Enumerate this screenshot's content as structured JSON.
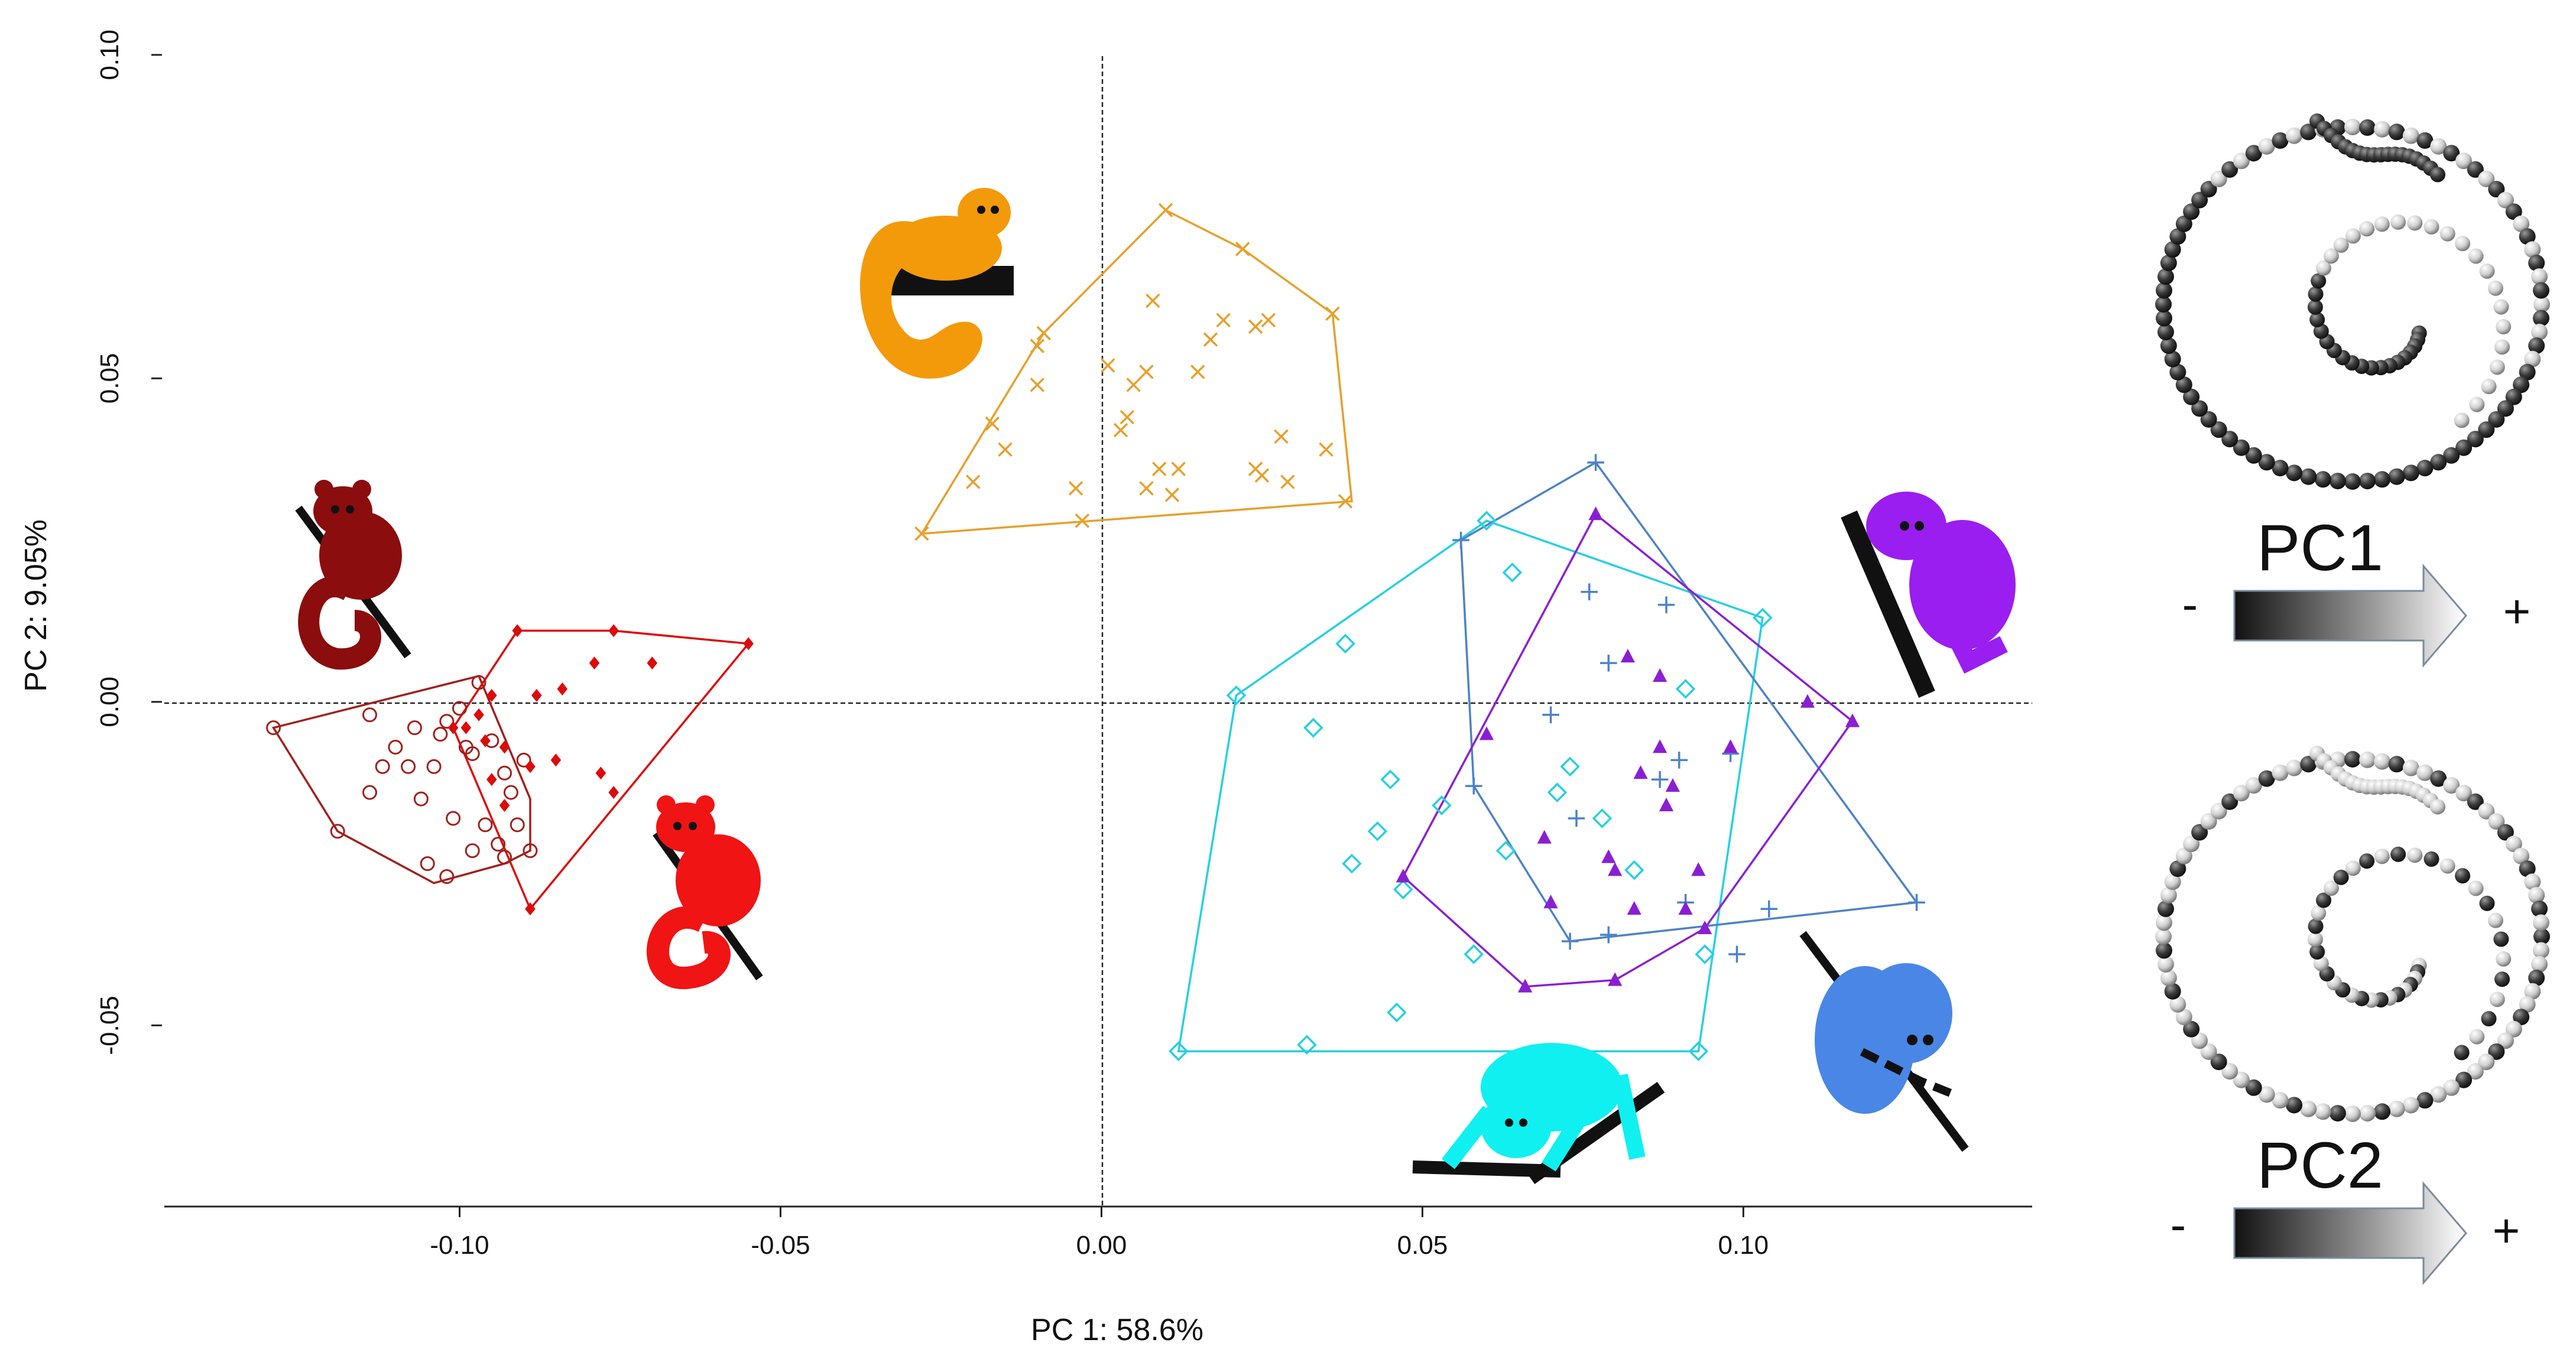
{
  "chart_data": {
    "type": "scatter",
    "xlabel": "PC 1: 58.6%",
    "ylabel": "PC 2: 9.05%",
    "xlim": [
      -0.146,
      0.145
    ],
    "ylim": [
      -0.078,
      0.103
    ],
    "xticks": [
      -0.1,
      -0.05,
      0.0,
      0.05,
      0.1
    ],
    "xtick_labels": [
      "-0.10",
      "-0.05",
      "0.00",
      "0.05",
      "0.10"
    ],
    "yticks": [
      -0.05,
      0.0,
      0.05,
      0.1
    ],
    "ytick_labels": [
      "-0.05",
      "0.00",
      "0.05",
      "0.10"
    ],
    "zero_lines": true,
    "series": [
      {
        "name": "dark-red-open-circles",
        "color": "#a0201c",
        "marker": "circle-open",
        "points": [
          [
            -0.129,
            -0.004
          ],
          [
            -0.114,
            -0.002
          ],
          [
            -0.107,
            -0.004
          ],
          [
            -0.102,
            -0.003
          ],
          [
            -0.097,
            0.003
          ],
          [
            -0.1,
            -0.001
          ],
          [
            -0.11,
            -0.007
          ],
          [
            -0.103,
            -0.005
          ],
          [
            -0.099,
            -0.007
          ],
          [
            -0.095,
            -0.006
          ],
          [
            -0.112,
            -0.01
          ],
          [
            -0.108,
            -0.01
          ],
          [
            -0.104,
            -0.01
          ],
          [
            -0.098,
            -0.008
          ],
          [
            -0.093,
            -0.011
          ],
          [
            -0.09,
            -0.009
          ],
          [
            -0.114,
            -0.014
          ],
          [
            -0.106,
            -0.015
          ],
          [
            -0.101,
            -0.018
          ],
          [
            -0.096,
            -0.019
          ],
          [
            -0.092,
            -0.014
          ],
          [
            -0.091,
            -0.019
          ],
          [
            -0.094,
            -0.022
          ],
          [
            -0.105,
            -0.025
          ],
          [
            -0.098,
            -0.023
          ],
          [
            -0.119,
            -0.02
          ],
          [
            -0.093,
            -0.024
          ],
          [
            -0.102,
            -0.027
          ],
          [
            -0.089,
            -0.023
          ]
        ],
        "hull": [
          [
            -0.129,
            -0.004
          ],
          [
            -0.097,
            0.004
          ],
          [
            -0.089,
            -0.015
          ],
          [
            -0.089,
            -0.023
          ],
          [
            -0.093,
            -0.025
          ],
          [
            -0.104,
            -0.028
          ],
          [
            -0.119,
            -0.02
          ]
        ]
      },
      {
        "name": "red-diamonds",
        "color": "#dd0a0a",
        "marker": "diamond-filled",
        "points": [
          [
            -0.091,
            0.011
          ],
          [
            -0.076,
            0.011
          ],
          [
            -0.055,
            0.009
          ],
          [
            -0.07,
            0.006
          ],
          [
            -0.079,
            0.006
          ],
          [
            -0.084,
            0.002
          ],
          [
            -0.088,
            0.001
          ],
          [
            -0.095,
            0.001
          ],
          [
            -0.097,
            -0.002
          ],
          [
            -0.099,
            -0.004
          ],
          [
            -0.101,
            -0.004
          ],
          [
            -0.096,
            -0.006
          ],
          [
            -0.093,
            -0.007
          ],
          [
            -0.085,
            -0.009
          ],
          [
            -0.089,
            -0.01
          ],
          [
            -0.078,
            -0.011
          ],
          [
            -0.095,
            -0.012
          ],
          [
            -0.093,
            -0.016
          ],
          [
            -0.076,
            -0.014
          ],
          [
            -0.089,
            -0.032
          ]
        ],
        "hull": [
          [
            -0.101,
            -0.004
          ],
          [
            -0.091,
            0.011
          ],
          [
            -0.076,
            0.011
          ],
          [
            -0.055,
            0.009
          ],
          [
            -0.089,
            -0.032
          ]
        ]
      },
      {
        "name": "orange-crosses",
        "color": "#e6a02a",
        "marker": "x",
        "points": [
          [
            0.01,
            0.076
          ],
          [
            0.022,
            0.07
          ],
          [
            0.008,
            0.062
          ],
          [
            -0.009,
            0.057
          ],
          [
            0.019,
            0.059
          ],
          [
            0.024,
            0.058
          ],
          [
            0.026,
            0.059
          ],
          [
            0.036,
            0.06
          ],
          [
            -0.01,
            0.055
          ],
          [
            0.017,
            0.056
          ],
          [
            0.001,
            0.052
          ],
          [
            0.007,
            0.051
          ],
          [
            0.005,
            0.049
          ],
          [
            -0.01,
            0.049
          ],
          [
            0.015,
            0.051
          ],
          [
            0.004,
            0.044
          ],
          [
            0.003,
            0.042
          ],
          [
            -0.017,
            0.043
          ],
          [
            0.028,
            0.041
          ],
          [
            0.035,
            0.039
          ],
          [
            -0.015,
            0.039
          ],
          [
            0.009,
            0.036
          ],
          [
            0.012,
            0.036
          ],
          [
            0.024,
            0.036
          ],
          [
            0.025,
            0.035
          ],
          [
            0.029,
            0.034
          ],
          [
            -0.02,
            0.034
          ],
          [
            -0.004,
            0.033
          ],
          [
            0.007,
            0.033
          ],
          [
            0.011,
            0.032
          ],
          [
            0.038,
            0.031
          ],
          [
            -0.003,
            0.028
          ],
          [
            -0.028,
            0.026
          ]
        ],
        "hull": [
          [
            -0.028,
            0.026
          ],
          [
            -0.009,
            0.057
          ],
          [
            0.01,
            0.076
          ],
          [
            0.022,
            0.07
          ],
          [
            0.036,
            0.06
          ],
          [
            0.039,
            0.031
          ]
        ]
      },
      {
        "name": "cyan-diamonds",
        "color": "#27cfe0",
        "marker": "diamond-open",
        "points": [
          [
            0.06,
            0.028
          ],
          [
            0.064,
            0.02
          ],
          [
            0.103,
            0.013
          ],
          [
            0.038,
            0.009
          ],
          [
            0.091,
            0.002
          ],
          [
            0.021,
            0.001
          ],
          [
            0.033,
            -0.004
          ],
          [
            0.045,
            -0.012
          ],
          [
            0.053,
            -0.016
          ],
          [
            0.073,
            -0.01
          ],
          [
            0.071,
            -0.014
          ],
          [
            0.043,
            -0.02
          ],
          [
            0.078,
            -0.018
          ],
          [
            0.039,
            -0.025
          ],
          [
            0.063,
            -0.023
          ],
          [
            0.083,
            -0.026
          ],
          [
            0.047,
            -0.029
          ],
          [
            0.058,
            -0.039
          ],
          [
            0.094,
            -0.039
          ],
          [
            0.046,
            -0.048
          ],
          [
            0.032,
            -0.053
          ],
          [
            0.093,
            -0.054
          ],
          [
            0.012,
            -0.054
          ]
        ],
        "hull": [
          [
            0.012,
            -0.054
          ],
          [
            0.021,
            0.001
          ],
          [
            0.06,
            0.028
          ],
          [
            0.103,
            0.013
          ],
          [
            0.093,
            -0.054
          ]
        ]
      },
      {
        "name": "blue-plus",
        "color": "#4d82c6",
        "marker": "plus",
        "points": [
          [
            0.077,
            0.037
          ],
          [
            0.056,
            0.025
          ],
          [
            0.076,
            0.017
          ],
          [
            0.088,
            0.015
          ],
          [
            0.079,
            0.006
          ],
          [
            0.07,
            -0.002
          ],
          [
            0.09,
            -0.009
          ],
          [
            0.087,
            -0.012
          ],
          [
            0.098,
            -0.008
          ],
          [
            0.058,
            -0.013
          ],
          [
            0.074,
            -0.018
          ],
          [
            0.091,
            -0.031
          ],
          [
            0.104,
            -0.032
          ],
          [
            0.079,
            -0.036
          ],
          [
            0.073,
            -0.037
          ],
          [
            0.099,
            -0.039
          ],
          [
            0.127,
            -0.031
          ]
        ],
        "hull": [
          [
            0.056,
            0.025
          ],
          [
            0.077,
            0.037
          ],
          [
            0.127,
            -0.031
          ],
          [
            0.073,
            -0.037
          ],
          [
            0.058,
            -0.013
          ]
        ]
      },
      {
        "name": "purple-triangles",
        "color": "#8a1fd2",
        "marker": "triangle-filled",
        "points": [
          [
            0.077,
            0.029
          ],
          [
            0.082,
            0.007
          ],
          [
            0.087,
            0.004
          ],
          [
            0.11,
            0.0
          ],
          [
            0.117,
            -0.003
          ],
          [
            0.06,
            -0.005
          ],
          [
            0.087,
            -0.007
          ],
          [
            0.098,
            -0.007
          ],
          [
            0.084,
            -0.011
          ],
          [
            0.089,
            -0.013
          ],
          [
            0.088,
            -0.016
          ],
          [
            0.069,
            -0.021
          ],
          [
            0.079,
            -0.024
          ],
          [
            0.08,
            -0.026
          ],
          [
            0.047,
            -0.027
          ],
          [
            0.093,
            -0.026
          ],
          [
            0.07,
            -0.031
          ],
          [
            0.083,
            -0.032
          ],
          [
            0.091,
            -0.032
          ],
          [
            0.094,
            -0.035
          ],
          [
            0.066,
            -0.044
          ],
          [
            0.08,
            -0.043
          ]
        ],
        "hull": [
          [
            0.047,
            -0.027
          ],
          [
            0.077,
            0.029
          ],
          [
            0.117,
            -0.003
          ],
          [
            0.094,
            -0.035
          ],
          [
            0.08,
            -0.043
          ],
          [
            0.066,
            -0.044
          ]
        ]
      }
    ],
    "annotations": [
      {
        "name": "pc1-shape",
        "label": "PC1",
        "minus": "-",
        "plus": "+"
      },
      {
        "name": "pc2-shape",
        "label": "PC2",
        "minus": "-",
        "plus": "+"
      }
    ]
  }
}
